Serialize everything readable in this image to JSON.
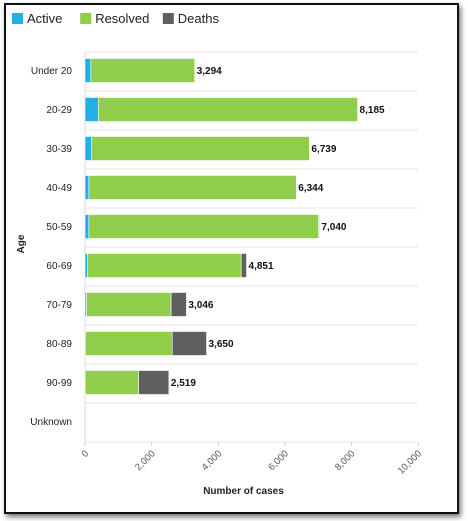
{
  "chart_data": {
    "type": "bar",
    "orientation": "horizontal",
    "stacked": true,
    "categories": [
      "Under 20",
      "20-29",
      "30-39",
      "40-49",
      "50-59",
      "60-69",
      "70-79",
      "80-89",
      "90-99",
      "Unknown"
    ],
    "series": [
      {
        "name": "Active",
        "color": "#1fb1e6",
        "values": [
          175,
          400,
          190,
          120,
          115,
          75,
          45,
          10,
          5,
          0
        ]
      },
      {
        "name": "Resolved",
        "color": "#8fcd4a",
        "values": [
          3119,
          7785,
          6549,
          6224,
          6900,
          4615,
          2541,
          2610,
          1604,
          0
        ]
      },
      {
        "name": "Deaths",
        "color": "#5f5f5f",
        "values": [
          0,
          0,
          0,
          0,
          25,
          161,
          460,
          1030,
          910,
          0
        ]
      }
    ],
    "totals": [
      "3,294",
      "8,185",
      "6,739",
      "6,344",
      "7,040",
      "4,851",
      "3,046",
      "3,650",
      "2,519",
      ""
    ],
    "xlim": [
      0,
      10000
    ],
    "xticks": [
      "0",
      "2,000",
      "4,000",
      "6,000",
      "8,000",
      "10,000"
    ],
    "xlabel": "Number of cases",
    "ylabel": "Age",
    "legend_position": "top-left",
    "grid": "horizontal separators between categories"
  }
}
